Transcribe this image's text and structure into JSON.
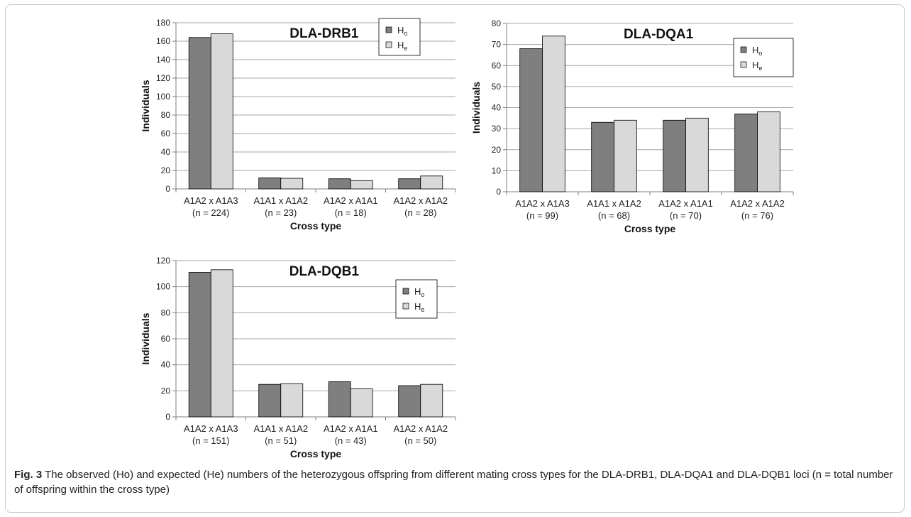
{
  "chart_data": [
    {
      "type": "bar",
      "title": "DLA-DRB1",
      "xlabel": "Cross type",
      "ylabel": "Individuals",
      "ylim": [
        0,
        180
      ],
      "yticks": [
        0,
        20,
        40,
        60,
        80,
        100,
        120,
        140,
        160,
        180
      ],
      "categories": [
        "A1A2 x A1A3",
        "A1A1 x A1A2",
        "A1A2 x A1A1",
        "A1A2 x A1A2"
      ],
      "category_n": [
        "(n = 224)",
        "(n = 23)",
        "(n = 18)",
        "(n = 28)"
      ],
      "series": [
        {
          "name": "Ho",
          "values": [
            164,
            12,
            11,
            11
          ],
          "color": "#7f7f7f"
        },
        {
          "name": "He",
          "values": [
            168,
            11.5,
            9,
            14
          ],
          "color": "#d9d9d9"
        }
      ],
      "legend": "top-right",
      "grid": true
    },
    {
      "type": "bar",
      "title": "DLA-DQA1",
      "xlabel": "Cross type",
      "ylabel": "Individuals",
      "ylim": [
        0,
        80
      ],
      "yticks": [
        0,
        10,
        20,
        30,
        40,
        50,
        60,
        70,
        80
      ],
      "categories": [
        "A1A2 x A1A3",
        "A1A1 x A1A2",
        "A1A2 x A1A1",
        "A1A2 x A1A2"
      ],
      "category_n": [
        "(n = 99)",
        "(n = 68)",
        "(n = 70)",
        "(n = 76)"
      ],
      "series": [
        {
          "name": "Ho",
          "values": [
            68,
            33,
            34,
            37
          ],
          "color": "#7f7f7f"
        },
        {
          "name": "He",
          "values": [
            74,
            34,
            35,
            38
          ],
          "color": "#d9d9d9"
        }
      ],
      "legend": "top-right",
      "grid": true
    },
    {
      "type": "bar",
      "title": "DLA-DQB1",
      "xlabel": "Cross type",
      "ylabel": "Individuals",
      "ylim": [
        0,
        120
      ],
      "yticks": [
        0,
        20,
        40,
        60,
        80,
        100,
        120
      ],
      "categories": [
        "A1A2 x A1A3",
        "A1A1 x A1A2",
        "A1A2 x A1A1",
        "A1A2 x A1A2"
      ],
      "category_n": [
        "(n = 151)",
        "(n = 51)",
        "(n = 43)",
        "(n = 50)"
      ],
      "series": [
        {
          "name": "Ho",
          "values": [
            111,
            25,
            27,
            24
          ],
          "color": "#7f7f7f"
        },
        {
          "name": "He",
          "values": [
            113,
            25.5,
            21.5,
            25
          ],
          "color": "#d9d9d9"
        }
      ],
      "legend": "top-right",
      "grid": true
    }
  ],
  "caption": {
    "label": "Fig. 3",
    "text": "The observed (Ho) and expected (He) numbers of the heterozygous offspring from different mating cross types for the DLA-DRB1, DLA-DQA1 and DLA-DQB1 loci (n = total number of offspring within the cross type)"
  }
}
